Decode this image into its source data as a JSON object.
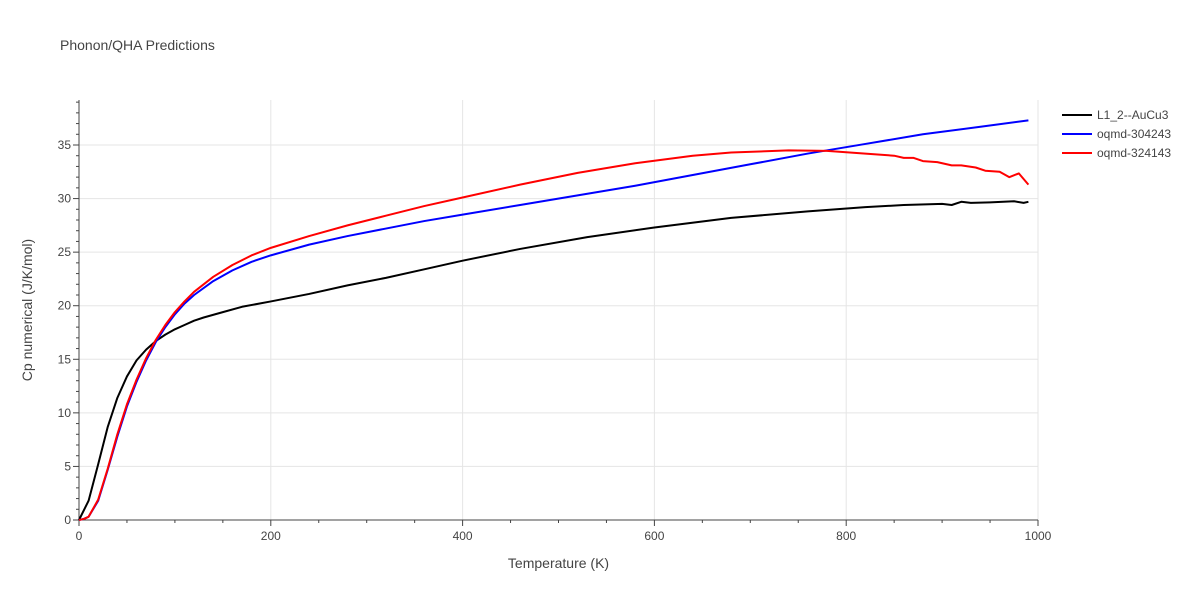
{
  "chart_data": {
    "type": "line",
    "title": "Phonon/QHA Predictions",
    "xlabel": "Temperature (K)",
    "ylabel": "Cp numerical (J/K/mol)",
    "xlim": [
      0,
      1000
    ],
    "ylim": [
      0,
      39.2
    ],
    "xticks": [
      0,
      200,
      400,
      600,
      800,
      1000
    ],
    "yticks": [
      0,
      5,
      10,
      15,
      20,
      25,
      30,
      35
    ],
    "grid": true,
    "legend_position": "top-right",
    "series": [
      {
        "name": "L1_2--AuCu3",
        "color": "#000000",
        "x": [
          0,
          10,
          20,
          30,
          40,
          50,
          60,
          70,
          80,
          90,
          100,
          110,
          120,
          130,
          150,
          170,
          200,
          240,
          280,
          320,
          360,
          400,
          460,
          530,
          600,
          680,
          760,
          820,
          860,
          900,
          910,
          920,
          930,
          950,
          975,
          985,
          990
        ],
        "y": [
          0,
          1.8,
          5.2,
          8.7,
          11.4,
          13.4,
          14.9,
          15.9,
          16.7,
          17.3,
          17.8,
          18.2,
          18.6,
          18.9,
          19.4,
          19.9,
          20.4,
          21.1,
          21.9,
          22.6,
          23.4,
          24.2,
          25.3,
          26.4,
          27.3,
          28.2,
          28.8,
          29.2,
          29.4,
          29.5,
          29.4,
          29.7,
          29.6,
          29.65,
          29.75,
          29.6,
          29.7
        ]
      },
      {
        "name": "oqmd-304243",
        "color": "#0000ff",
        "x": [
          0,
          5,
          10,
          20,
          30,
          40,
          50,
          60,
          70,
          80,
          90,
          100,
          110,
          120,
          140,
          160,
          180,
          200,
          240,
          280,
          320,
          360,
          400,
          460,
          520,
          580,
          640,
          700,
          760,
          820,
          880,
          940,
          990
        ],
        "y": [
          0,
          0.1,
          0.3,
          1.8,
          4.7,
          7.8,
          10.6,
          12.9,
          14.9,
          16.6,
          18.0,
          19.2,
          20.2,
          21.0,
          22.3,
          23.3,
          24.1,
          24.7,
          25.7,
          26.5,
          27.2,
          27.9,
          28.5,
          29.4,
          30.3,
          31.2,
          32.2,
          33.2,
          34.2,
          35.1,
          36.0,
          36.7,
          37.3
        ]
      },
      {
        "name": "oqmd-324143",
        "color": "#ff0000",
        "x": [
          0,
          5,
          10,
          20,
          30,
          40,
          50,
          60,
          70,
          80,
          90,
          100,
          110,
          120,
          140,
          160,
          180,
          200,
          240,
          280,
          320,
          360,
          400,
          460,
          520,
          580,
          640,
          680,
          740,
          780,
          820,
          850,
          860,
          870,
          880,
          895,
          910,
          920,
          935,
          945,
          960,
          970,
          980,
          990
        ],
        "y": [
          0,
          0.1,
          0.3,
          1.9,
          4.8,
          8.0,
          10.8,
          13.1,
          15.1,
          16.8,
          18.2,
          19.4,
          20.4,
          21.3,
          22.7,
          23.8,
          24.7,
          25.4,
          26.5,
          27.5,
          28.4,
          29.3,
          30.1,
          31.3,
          32.4,
          33.3,
          34.0,
          34.3,
          34.5,
          34.45,
          34.2,
          34.0,
          33.8,
          33.8,
          33.5,
          33.4,
          33.1,
          33.1,
          32.9,
          32.6,
          32.5,
          32.0,
          32.35,
          31.3
        ]
      }
    ]
  }
}
